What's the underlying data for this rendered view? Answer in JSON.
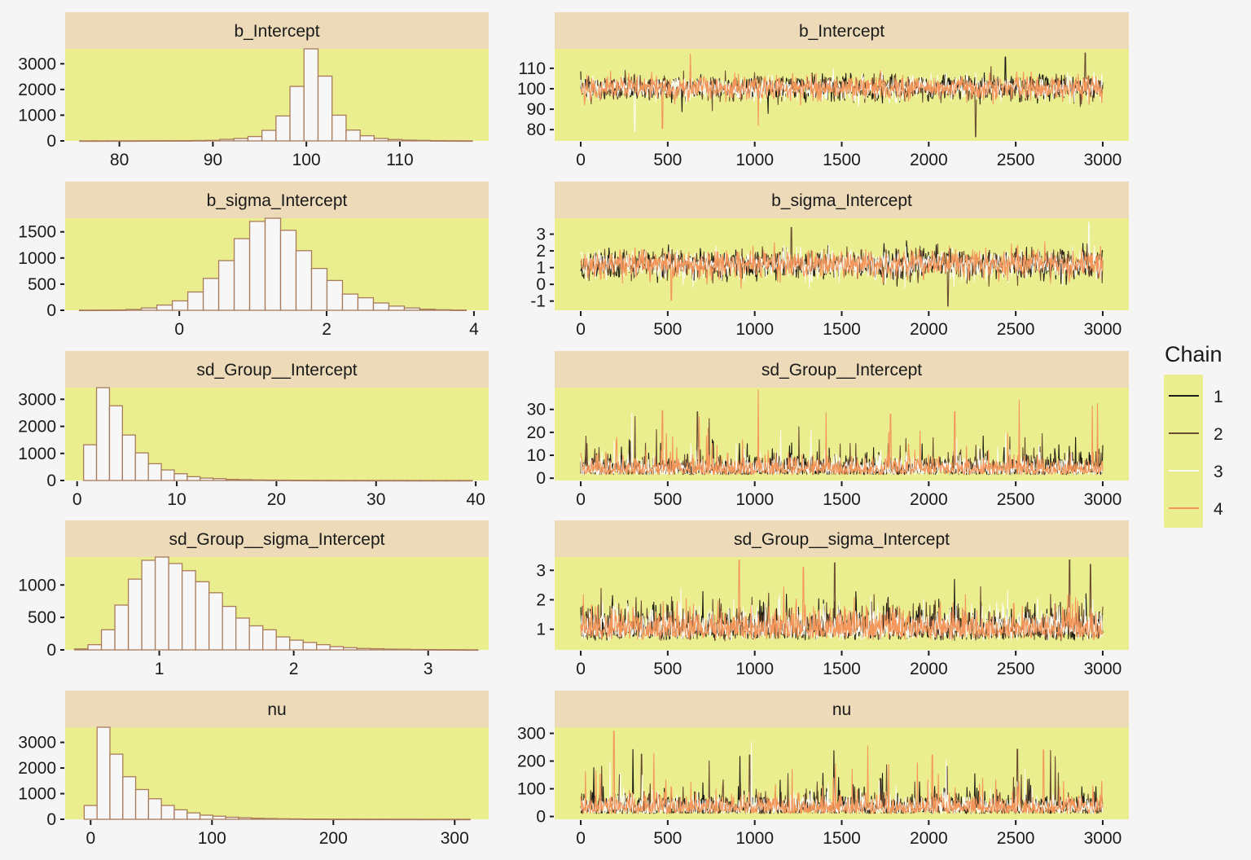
{
  "chart_data": {
    "type": "mcmc_diagnostics",
    "layout": "5 rows x 2 columns (histogram | trace), shared legend right",
    "colors": {
      "background": "#f5f5f5",
      "panel": "#ebee8e",
      "strip": "#ecdab8",
      "hist_fill": "#f7f7f7",
      "hist_stroke": "#a87b5a",
      "axis_tick": "#1a1a1a",
      "text": "#1a1a1a"
    },
    "legend": {
      "title": "Chain",
      "placement": "right",
      "entries": [
        {
          "label": "1",
          "color": "#1c1c14"
        },
        {
          "label": "2",
          "color": "#6a4c34"
        },
        {
          "label": "3",
          "color": "#fbfbf0"
        },
        {
          "label": "4",
          "color": "#f4965a"
        }
      ]
    },
    "panels": [
      {
        "parameter": "b_Intercept",
        "histogram": {
          "type": "bar",
          "xlim": [
            74.2,
            119.5
          ],
          "ylim": [
            0,
            3580
          ],
          "xticks": [
            80,
            90,
            100,
            110
          ],
          "yticks": [
            0,
            1000,
            2000,
            3000
          ],
          "bins": [
            76.5,
            78,
            79.5,
            81,
            82.5,
            84,
            85.5,
            87,
            88.5,
            90,
            91.5,
            93,
            94.5,
            96,
            97.5,
            99,
            100.5,
            102,
            103.5,
            105,
            106.5,
            108,
            109.5,
            111,
            112.5,
            114,
            115.5,
            117
          ],
          "bin_width": 1.5,
          "counts": [
            2,
            2,
            3,
            3,
            5,
            8,
            8,
            10,
            15,
            22,
            60,
            95,
            170,
            410,
            970,
            2120,
            3580,
            2520,
            1000,
            420,
            200,
            95,
            55,
            30,
            20,
            10,
            6,
            4
          ]
        },
        "trace": {
          "type": "line",
          "xlim": [
            -150,
            3150
          ],
          "ylim": [
            74.5,
            119.5
          ],
          "xticks": [
            0,
            500,
            1000,
            1500,
            2000,
            2500,
            3000
          ],
          "yticks": [
            80,
            90,
            100,
            110
          ],
          "iterations": 3000,
          "center": 100.5,
          "spread": 3.2,
          "spikes": [
            {
              "chain": 2,
              "x": 2270,
              "y": 76.5
            },
            {
              "chain": 3,
              "x": 310,
              "y": 79
            },
            {
              "chain": 4,
              "x": 470,
              "y": 80.5
            },
            {
              "chain": 4,
              "x": 1020,
              "y": 82
            },
            {
              "chain": 4,
              "x": 630,
              "y": 117
            },
            {
              "chain": 2,
              "x": 2900,
              "y": 117.5
            },
            {
              "chain": 1,
              "x": 2440,
              "y": 115.5
            }
          ]
        }
      },
      {
        "parameter": "b_sigma_Intercept",
        "histogram": {
          "type": "bar",
          "xlim": [
            -1.55,
            4.2
          ],
          "ylim": [
            0,
            1760
          ],
          "xticks": [
            0,
            2,
            4
          ],
          "yticks": [
            0,
            500,
            1000,
            1500
          ],
          "bins": [
            -1.25,
            -1.04,
            -0.83,
            -0.62,
            -0.41,
            -0.2,
            0.01,
            0.22,
            0.43,
            0.64,
            0.85,
            1.06,
            1.27,
            1.48,
            1.69,
            1.9,
            2.11,
            2.32,
            2.53,
            2.74,
            2.95,
            3.16,
            3.37,
            3.58,
            3.79
          ],
          "bin_width": 0.21,
          "counts": [
            3,
            4,
            6,
            15,
            45,
            100,
            180,
            350,
            610,
            950,
            1370,
            1700,
            1760,
            1530,
            1140,
            800,
            570,
            310,
            240,
            140,
            80,
            45,
            20,
            10,
            5
          ]
        },
        "trace": {
          "type": "line",
          "xlim": [
            -150,
            3150
          ],
          "ylim": [
            -1.55,
            3.95
          ],
          "xticks": [
            0,
            500,
            1000,
            1500,
            2000,
            2500,
            3000
          ],
          "yticks": [
            -1,
            0,
            1,
            2,
            3
          ],
          "iterations": 3000,
          "center": 1.2,
          "spread": 0.45,
          "spikes": [
            {
              "chain": 2,
              "x": 2110,
              "y": -1.3
            },
            {
              "chain": 4,
              "x": 520,
              "y": -0.95
            },
            {
              "chain": 3,
              "x": 2920,
              "y": 3.7
            },
            {
              "chain": 2,
              "x": 1210,
              "y": 3.4
            }
          ]
        }
      },
      {
        "parameter": "sd_Group__Intercept",
        "histogram": {
          "type": "bar",
          "xlim": [
            -1.2,
            41.3
          ],
          "ylim": [
            0,
            3430
          ],
          "xticks": [
            0,
            10,
            20,
            30,
            40
          ],
          "yticks": [
            0,
            1000,
            2000,
            3000
          ],
          "bins": [
            1.3,
            2.6,
            3.9,
            5.2,
            6.5,
            7.8,
            9.1,
            10.4,
            11.7,
            13.0,
            14.3,
            15.6,
            16.9,
            18.2,
            19.5,
            20.8,
            22.1,
            23.4,
            24.7,
            26.0,
            27.3,
            28.6,
            29.9,
            31.2,
            32.5,
            33.8,
            35.1,
            36.4,
            37.7,
            39.0
          ],
          "bin_width": 1.3,
          "counts": [
            1320,
            3430,
            2760,
            1680,
            1020,
            620,
            390,
            250,
            140,
            90,
            70,
            40,
            30,
            20,
            15,
            12,
            8,
            6,
            5,
            4,
            3,
            3,
            2,
            2,
            2,
            1,
            1,
            1,
            1,
            1
          ]
        },
        "trace": {
          "type": "line",
          "xlim": [
            -150,
            3150
          ],
          "ylim": [
            -1,
            39.5
          ],
          "xticks": [
            0,
            500,
            1000,
            1500,
            2000,
            2500,
            3000
          ],
          "yticks": [
            0,
            10,
            20,
            30
          ],
          "iterations": 3000,
          "center": 4.5,
          "spread": 3.5,
          "spikes": [
            {
              "chain": 4,
              "x": 1020,
              "y": 38.5
            },
            {
              "chain": 4,
              "x": 2520,
              "y": 34
            },
            {
              "chain": 4,
              "x": 2970,
              "y": 32.5
            },
            {
              "chain": 4,
              "x": 2940,
              "y": 31.5
            },
            {
              "chain": 2,
              "x": 670,
              "y": 29
            },
            {
              "chain": 4,
              "x": 470,
              "y": 29.5
            },
            {
              "chain": 4,
              "x": 1410,
              "y": 28.5
            },
            {
              "chain": 4,
              "x": 2150,
              "y": 29
            },
            {
              "chain": 4,
              "x": 1780,
              "y": 28
            }
          ]
        }
      },
      {
        "parameter": "sd_Group__sigma_Intercept",
        "histogram": {
          "type": "bar",
          "xlim": [
            0.3,
            3.45
          ],
          "ylim": [
            0,
            1430
          ],
          "xticks": [
            1,
            2,
            3
          ],
          "yticks": [
            0,
            500,
            1000
          ],
          "bins": [
            0.42,
            0.52,
            0.62,
            0.72,
            0.82,
            0.92,
            1.02,
            1.12,
            1.22,
            1.32,
            1.42,
            1.52,
            1.62,
            1.72,
            1.82,
            1.92,
            2.02,
            2.12,
            2.22,
            2.32,
            2.42,
            2.52,
            2.62,
            2.72,
            2.82,
            2.92,
            3.02,
            3.12,
            3.22,
            3.32
          ],
          "bin_width": 0.1,
          "counts": [
            15,
            80,
            310,
            690,
            1090,
            1380,
            1430,
            1330,
            1220,
            1050,
            880,
            670,
            490,
            370,
            310,
            200,
            150,
            115,
            80,
            50,
            35,
            22,
            18,
            12,
            10,
            6,
            5,
            4,
            3,
            2
          ]
        },
        "trace": {
          "type": "line",
          "xlim": [
            -150,
            3150
          ],
          "ylim": [
            0.3,
            3.45
          ],
          "xticks": [
            0,
            500,
            1000,
            1500,
            2000,
            2500,
            3000
          ],
          "yticks": [
            1,
            2,
            3
          ],
          "iterations": 3000,
          "center": 1.15,
          "spread": 0.35,
          "spikes": [
            {
              "chain": 4,
              "x": 910,
              "y": 3.35
            },
            {
              "chain": 2,
              "x": 2810,
              "y": 3.35
            },
            {
              "chain": 2,
              "x": 1460,
              "y": 3.25
            },
            {
              "chain": 2,
              "x": 2930,
              "y": 3.2
            },
            {
              "chain": 4,
              "x": 1280,
              "y": 3.1
            }
          ]
        }
      },
      {
        "parameter": "nu",
        "histogram": {
          "type": "bar",
          "xlim": [
            -21,
            328
          ],
          "ylim": [
            0,
            3590
          ],
          "xticks": [
            0,
            100,
            200,
            300
          ],
          "yticks": [
            0,
            1000,
            2000,
            3000
          ],
          "bins": [
            0,
            10.6,
            21.2,
            31.8,
            42.4,
            53,
            63.6,
            74.2,
            84.8,
            95.4,
            106,
            116.6,
            127.2,
            137.8,
            148.4,
            159,
            169.6,
            180.2,
            190.8,
            201.4,
            212,
            222.6,
            233.2,
            243.8,
            254.4,
            265,
            275.6,
            286.2,
            296.8,
            307.4
          ],
          "bin_width": 10.6,
          "counts": [
            540,
            3590,
            2540,
            1660,
            1160,
            800,
            540,
            370,
            250,
            160,
            120,
            80,
            60,
            40,
            30,
            20,
            15,
            10,
            8,
            6,
            5,
            4,
            3,
            3,
            2,
            2,
            1,
            1,
            1,
            1
          ]
        },
        "trace": {
          "type": "line",
          "xlim": [
            -150,
            3150
          ],
          "ylim": [
            -10,
            322
          ],
          "xticks": [
            0,
            500,
            1000,
            1500,
            2000,
            2500,
            3000
          ],
          "yticks": [
            0,
            100,
            200,
            300
          ],
          "iterations": 3000,
          "center": 30,
          "spread": 30,
          "spikes": [
            {
              "chain": 4,
              "x": 190,
              "y": 308
            },
            {
              "chain": 4,
              "x": 1650,
              "y": 255
            },
            {
              "chain": 2,
              "x": 2510,
              "y": 243
            },
            {
              "chain": 4,
              "x": 2660,
              "y": 240
            },
            {
              "chain": 2,
              "x": 2700,
              "y": 238
            },
            {
              "chain": 4,
              "x": 420,
              "y": 228
            },
            {
              "chain": 2,
              "x": 350,
              "y": 225
            },
            {
              "chain": 2,
              "x": 970,
              "y": 222
            },
            {
              "chain": 4,
              "x": 2020,
              "y": 222
            }
          ]
        }
      }
    ]
  }
}
